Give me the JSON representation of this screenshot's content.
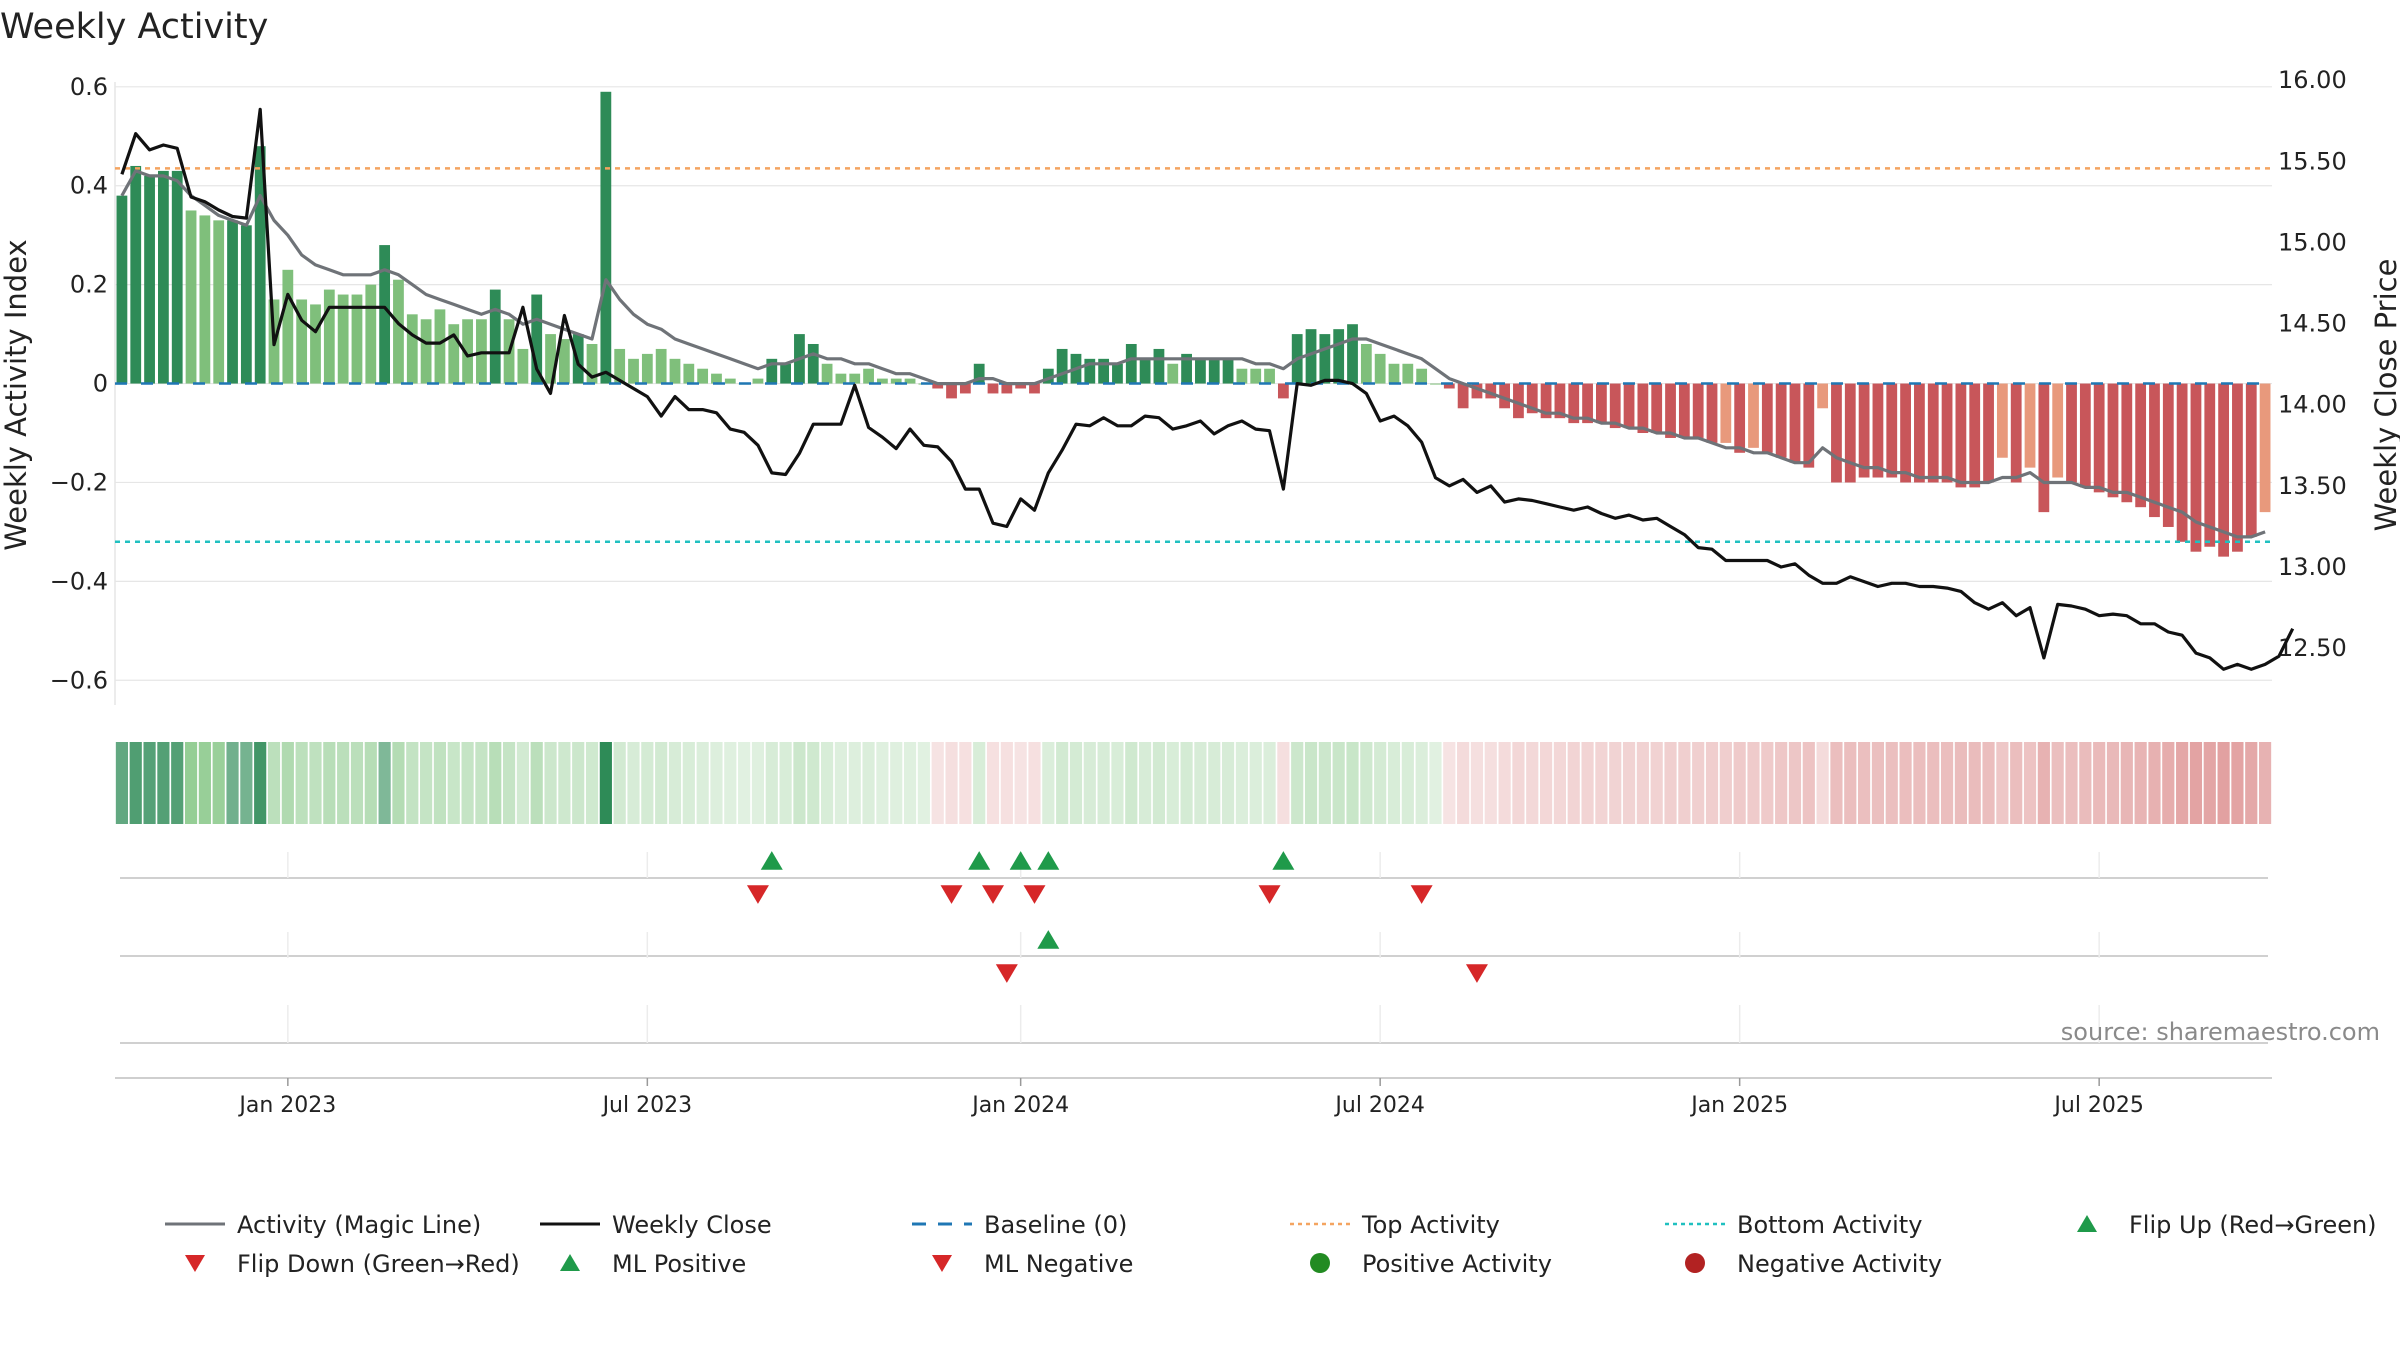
{
  "chart_data": {
    "type": "bar",
    "title": "Weekly Activity",
    "ylabel_left": "Weekly Activity Index",
    "ylabel_right": "Weekly Close Price",
    "ylim_left": [
      -0.65,
      0.63
    ],
    "ylim_right": [
      12.15,
      16.05
    ],
    "y_ticks_left": [
      {
        "value": 0.6,
        "label": "0.6"
      },
      {
        "value": 0.4,
        "label": "0.4"
      },
      {
        "value": 0.2,
        "label": "0.2"
      },
      {
        "value": 0,
        "label": "0"
      },
      {
        "value": -0.2,
        "label": "−0.2"
      },
      {
        "value": -0.4,
        "label": "−0.4"
      },
      {
        "value": -0.6,
        "label": "−0.6"
      }
    ],
    "y_ticks_right": [
      {
        "value": 16.0,
        "label": "16.00"
      },
      {
        "value": 15.5,
        "label": "15.50"
      },
      {
        "value": 15.0,
        "label": "15.00"
      },
      {
        "value": 14.5,
        "label": "14.50"
      },
      {
        "value": 14.0,
        "label": "14.00"
      },
      {
        "value": 13.5,
        "label": "13.50"
      },
      {
        "value": 13.0,
        "label": "13.00"
      },
      {
        "value": 12.5,
        "label": "12.50"
      }
    ],
    "x_ticks": [
      {
        "week": 12,
        "label": "Jan 2023"
      },
      {
        "week": 38,
        "label": "Jul 2023"
      },
      {
        "week": 65,
        "label": "Jan 2024"
      },
      {
        "week": 91,
        "label": "Jul 2024"
      },
      {
        "week": 117,
        "label": "Jan 2025"
      },
      {
        "week": 143,
        "label": "Jul 2025"
      }
    ],
    "top_activity": 0.435,
    "bottom_activity": -0.32,
    "weekly_activity": [
      0.38,
      0.44,
      0.42,
      0.43,
      0.43,
      0.35,
      0.34,
      0.33,
      0.33,
      0.32,
      0.48,
      0.17,
      0.23,
      0.17,
      0.16,
      0.19,
      0.18,
      0.18,
      0.2,
      0.28,
      0.21,
      0.14,
      0.13,
      0.15,
      0.12,
      0.13,
      0.13,
      0.19,
      0.13,
      0.07,
      0.18,
      0.1,
      0.09,
      0.1,
      0.08,
      0.59,
      0.07,
      0.05,
      0.06,
      0.07,
      0.05,
      0.04,
      0.03,
      0.02,
      0.01,
      0.0,
      0.01,
      0.05,
      0.04,
      0.1,
      0.08,
      0.04,
      0.02,
      0.02,
      0.03,
      0.01,
      0.01,
      0.01,
      0.0,
      -0.01,
      -0.03,
      -0.02,
      0.04,
      -0.02,
      -0.02,
      -0.01,
      -0.02,
      0.03,
      0.07,
      0.06,
      0.05,
      0.05,
      0.04,
      0.08,
      0.05,
      0.07,
      0.04,
      0.06,
      0.05,
      0.05,
      0.05,
      0.03,
      0.03,
      0.03,
      -0.03,
      0.1,
      0.11,
      0.1,
      0.11,
      0.12,
      0.08,
      0.06,
      0.04,
      0.04,
      0.03,
      0.0,
      -0.01,
      -0.05,
      -0.03,
      -0.03,
      -0.05,
      -0.07,
      -0.06,
      -0.07,
      -0.07,
      -0.08,
      -0.08,
      -0.08,
      -0.09,
      -0.09,
      -0.1,
      -0.1,
      -0.11,
      -0.11,
      -0.11,
      -0.12,
      -0.12,
      -0.14,
      -0.13,
      -0.14,
      -0.15,
      -0.16,
      -0.17,
      -0.05,
      -0.2,
      -0.2,
      -0.19,
      -0.19,
      -0.19,
      -0.2,
      -0.2,
      -0.2,
      -0.2,
      -0.21,
      -0.21,
      -0.2,
      -0.15,
      -0.2,
      -0.17,
      -0.26,
      -0.19,
      -0.2,
      -0.21,
      -0.22,
      -0.23,
      -0.24,
      -0.25,
      -0.27,
      -0.29,
      -0.32,
      -0.34,
      -0.33,
      -0.35,
      -0.34,
      -0.31,
      -0.26
    ],
    "magic_line": [
      0.38,
      0.43,
      0.42,
      0.42,
      0.41,
      0.38,
      0.36,
      0.34,
      0.33,
      0.32,
      0.38,
      0.33,
      0.3,
      0.26,
      0.24,
      0.23,
      0.22,
      0.22,
      0.22,
      0.23,
      0.22,
      0.2,
      0.18,
      0.17,
      0.16,
      0.15,
      0.14,
      0.15,
      0.14,
      0.12,
      0.13,
      0.12,
      0.11,
      0.1,
      0.09,
      0.21,
      0.17,
      0.14,
      0.12,
      0.11,
      0.09,
      0.08,
      0.07,
      0.06,
      0.05,
      0.04,
      0.03,
      0.04,
      0.04,
      0.05,
      0.06,
      0.05,
      0.05,
      0.04,
      0.04,
      0.03,
      0.02,
      0.02,
      0.01,
      0.0,
      0.0,
      0.0,
      0.01,
      0.01,
      0.0,
      0.0,
      0.0,
      0.01,
      0.02,
      0.03,
      0.04,
      0.04,
      0.04,
      0.05,
      0.05,
      0.05,
      0.05,
      0.05,
      0.05,
      0.05,
      0.05,
      0.05,
      0.04,
      0.04,
      0.03,
      0.05,
      0.06,
      0.07,
      0.08,
      0.09,
      0.09,
      0.08,
      0.07,
      0.06,
      0.05,
      0.03,
      0.01,
      0.0,
      -0.01,
      -0.02,
      -0.03,
      -0.04,
      -0.05,
      -0.06,
      -0.06,
      -0.07,
      -0.07,
      -0.08,
      -0.08,
      -0.09,
      -0.09,
      -0.1,
      -0.1,
      -0.11,
      -0.11,
      -0.12,
      -0.13,
      -0.13,
      -0.14,
      -0.14,
      -0.15,
      -0.16,
      -0.16,
      -0.13,
      -0.15,
      -0.16,
      -0.17,
      -0.17,
      -0.18,
      -0.18,
      -0.19,
      -0.19,
      -0.19,
      -0.2,
      -0.2,
      -0.2,
      -0.19,
      -0.19,
      -0.18,
      -0.2,
      -0.2,
      -0.2,
      -0.21,
      -0.21,
      -0.22,
      -0.22,
      -0.23,
      -0.24,
      -0.25,
      -0.26,
      -0.28,
      -0.29,
      -0.3,
      -0.31,
      -0.31,
      -0.3
    ],
    "weekly_close": [
      15.42,
      15.67,
      15.57,
      15.6,
      15.58,
      15.28,
      15.25,
      15.2,
      15.16,
      15.15,
      15.82,
      14.37,
      14.68,
      14.52,
      14.45,
      14.6,
      14.6,
      14.6,
      14.6,
      14.6,
      14.5,
      14.43,
      14.38,
      14.38,
      14.43,
      14.3,
      14.32,
      14.32,
      14.32,
      14.6,
      14.22,
      14.07,
      14.55,
      14.25,
      14.17,
      14.2,
      14.15,
      14.1,
      14.05,
      13.93,
      14.05,
      13.97,
      13.97,
      13.95,
      13.85,
      13.83,
      13.75,
      13.58,
      13.57,
      13.7,
      13.88,
      13.88,
      13.88,
      14.12,
      13.86,
      13.8,
      13.73,
      13.85,
      13.75,
      13.74,
      13.65,
      13.48,
      13.48,
      13.27,
      13.25,
      13.42,
      13.35,
      13.58,
      13.72,
      13.88,
      13.87,
      13.92,
      13.87,
      13.87,
      13.93,
      13.92,
      13.85,
      13.87,
      13.9,
      13.82,
      13.87,
      13.9,
      13.85,
      13.84,
      13.48,
      14.13,
      14.12,
      14.15,
      14.15,
      14.13,
      14.07,
      13.9,
      13.93,
      13.87,
      13.77,
      13.55,
      13.5,
      13.54,
      13.46,
      13.5,
      13.4,
      13.42,
      13.41,
      13.39,
      13.37,
      13.35,
      13.37,
      13.33,
      13.3,
      13.32,
      13.29,
      13.3,
      13.25,
      13.2,
      13.12,
      13.11,
      13.04,
      13.04,
      13.04,
      13.04,
      13.0,
      13.02,
      12.95,
      12.9,
      12.9,
      12.94,
      12.91,
      12.88,
      12.9,
      12.9,
      12.88,
      12.88,
      12.87,
      12.85,
      12.78,
      12.74,
      12.78,
      12.7,
      12.75,
      12.44,
      12.77,
      12.76,
      12.74,
      12.7,
      12.71,
      12.7,
      12.65,
      12.65,
      12.6,
      12.58,
      12.47,
      12.44,
      12.37,
      12.4,
      12.37,
      12.4,
      12.45,
      12.62
    ],
    "flip_up_weeks": [
      47,
      62,
      65,
      67,
      84
    ],
    "flip_down_weeks": [
      46,
      60,
      63,
      66,
      83,
      94
    ],
    "ml_positive_weeks": [
      67
    ],
    "ml_negative_weeks": [
      64,
      98
    ],
    "legend": [
      "Activity (Magic Line)",
      "Weekly Close",
      "Baseline (0)",
      "Top Activity",
      "Bottom Activity",
      "Flip Up (Red→Green)",
      "Flip Down (Green→Red)",
      "ML Positive",
      "ML Negative",
      "Positive Activity",
      "Negative Activity"
    ],
    "source_text": "source: sharemaestro.com"
  },
  "colors": {
    "strong_green": "#2e8b57",
    "light_green": "#7fbf7b",
    "strong_red": "#c8565a",
    "light_red": "#e8997c",
    "magic_line": "#6f7378",
    "close_line": "#111111",
    "baseline": "#1f77b4",
    "top_line": "#f4a460",
    "bottom_line": "#20c0c0",
    "marker_up": "#1f9a4a",
    "marker_down": "#d62728",
    "positive_dot": "#228b22",
    "negative_dot": "#b22222",
    "grid": "#e6e6e6",
    "source": "#8a8a8a"
  }
}
